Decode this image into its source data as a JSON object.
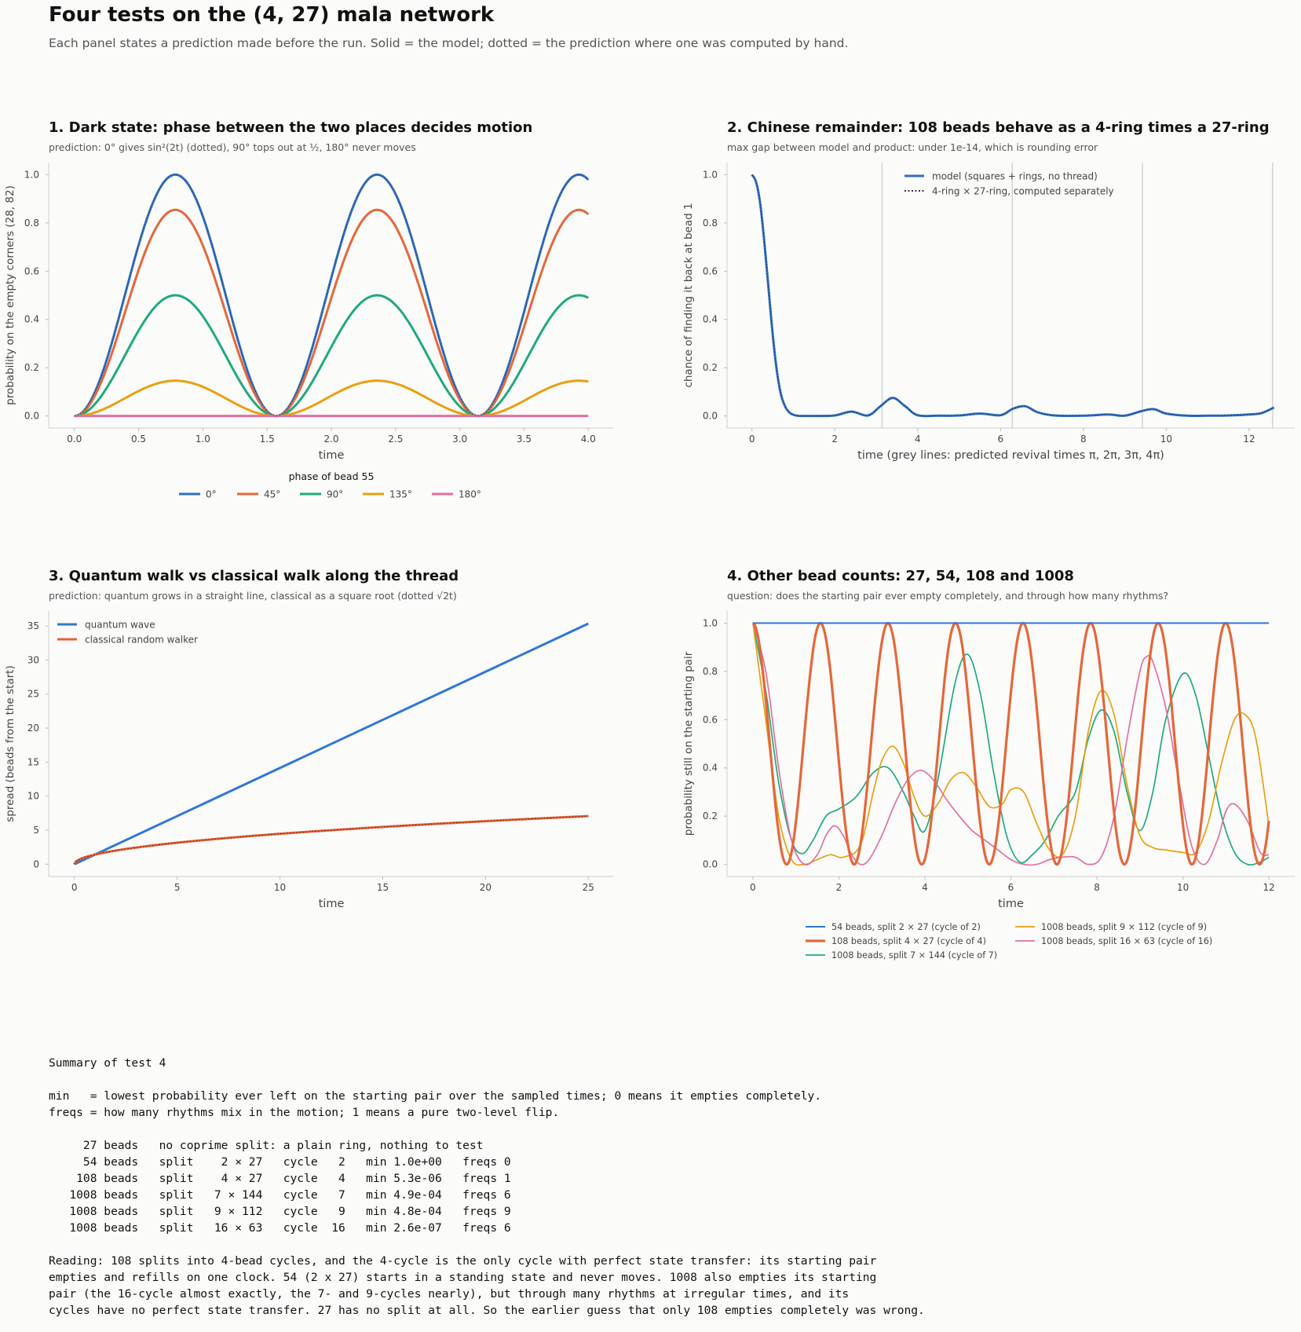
{
  "header": {
    "title": "Four tests on the (4, 27) mala network",
    "subtitle": "Each panel states a prediction made before the run. Solid = the model; dotted = the prediction where one was computed by hand."
  },
  "panels": [
    {
      "title": "1. Dark state: phase between the two places decides motion",
      "subtitle": "prediction: 0° gives sin²(2t) (dotted), 90° tops out at ½, 180° never moves"
    },
    {
      "title": "2. Chinese remainder: 108 beads behave as a 4-ring times a 27-ring",
      "subtitle": "max gap between model and product: under 1e-14, which is rounding error"
    },
    {
      "title": "3. Quantum walk vs classical walk along the thread",
      "subtitle": "prediction: quantum grows in a straight line, classical as a square root (dotted √2t)"
    },
    {
      "title": "4. Other bead counts: 27, 54, 108 and 1008",
      "subtitle": "question: does the starting pair ever empty completely, and through how many rhythms?"
    }
  ],
  "chart_data": [
    {
      "type": "line",
      "xlabel": "time",
      "ylabel": "probability on the empty corners (28, 82)",
      "xlim": [
        -0.2,
        4.2
      ],
      "ylim": [
        -0.05,
        1.05
      ],
      "xticks": [
        0.0,
        0.5,
        1.0,
        1.5,
        2.0,
        2.5,
        3.0,
        3.5,
        4.0
      ],
      "yticks": [
        0.0,
        0.2,
        0.4,
        0.6,
        0.8,
        1.0
      ],
      "legend_title": "phase of bead 55",
      "legend_position": "below",
      "x_domain": [
        0,
        4
      ],
      "model": "A · sin²(2t)",
      "series": [
        {
          "name": "0°",
          "color": "#2f6fbf",
          "amplitude": 1.0
        },
        {
          "name": "45°",
          "color": "#e3683a",
          "amplitude": 0.854
        },
        {
          "name": "90°",
          "color": "#1faa7c",
          "amplitude": 0.5
        },
        {
          "name": "135°",
          "color": "#e9a011",
          "amplitude": 0.146
        },
        {
          "name": "180°",
          "color": "#e0719f",
          "amplitude": 0.0
        }
      ],
      "prediction": {
        "style": "dotted",
        "matches_series": "0°"
      }
    },
    {
      "type": "line",
      "xlabel": "time  (grey lines: predicted revival times π, 2π, 3π, 4π)",
      "ylabel": "chance of finding it back at bead 1",
      "xlim": [
        -0.6,
        13.1
      ],
      "ylim": [
        -0.05,
        1.05
      ],
      "xticks": [
        0,
        2,
        4,
        6,
        8,
        10,
        12
      ],
      "yticks": [
        0.0,
        0.2,
        0.4,
        0.6,
        0.8,
        1.0
      ],
      "vlines": [
        3.1416,
        6.2832,
        9.4248,
        12.5664
      ],
      "legend_position": "top-center",
      "series": [
        {
          "name": "model (squares + rings, no thread)",
          "color": "#2f6fbf",
          "style": "solid",
          "x": [
            0,
            0.1,
            0.2,
            0.3,
            0.4,
            0.5,
            0.6,
            0.7,
            0.8,
            0.9,
            1.0,
            1.1,
            1.2,
            1.5,
            2.0,
            2.4,
            2.8,
            3.1,
            3.4,
            3.7,
            4.0,
            4.5,
            5.0,
            5.5,
            6.0,
            6.3,
            6.6,
            6.9,
            7.3,
            8.0,
            8.6,
            9.0,
            9.4,
            9.7,
            10.0,
            10.5,
            11.0,
            11.5,
            12.0,
            12.3,
            12.6
          ],
          "y": [
            1.0,
            0.97,
            0.88,
            0.72,
            0.53,
            0.34,
            0.19,
            0.09,
            0.04,
            0.015,
            0.005,
            0.001,
            0.0,
            0.0,
            0.002,
            0.018,
            0.002,
            0.04,
            0.075,
            0.04,
            0.003,
            0.001,
            0.002,
            0.01,
            0.003,
            0.03,
            0.04,
            0.015,
            0.002,
            0.001,
            0.006,
            0.001,
            0.02,
            0.028,
            0.01,
            0.001,
            0.001,
            0.002,
            0.006,
            0.012,
            0.035
          ]
        },
        {
          "name": "4-ring × 27-ring, computed separately",
          "color": "#333333",
          "style": "dotted",
          "same_as": "model (squares + rings, no thread)"
        }
      ]
    },
    {
      "type": "line",
      "xlabel": "time",
      "ylabel": "spread (beads from the start)",
      "xlim": [
        -1.25,
        26.25
      ],
      "ylim": [
        -1.8,
        37.2
      ],
      "xticks": [
        0,
        5,
        10,
        15,
        20,
        25
      ],
      "yticks": [
        0,
        5,
        10,
        15,
        20,
        25,
        30,
        35
      ],
      "legend_position": "top-left",
      "x_domain": [
        0,
        25
      ],
      "series": [
        {
          "name": "quantum wave",
          "color": "#2f78d4",
          "style": "solid",
          "model": "1.414 · t"
        },
        {
          "name": "classical random walker",
          "color": "#e85f35",
          "style": "solid",
          "model": "√(2t)"
        }
      ],
      "prediction": {
        "style": "dotted",
        "formula": "√2t"
      }
    },
    {
      "type": "line",
      "xlabel": "time",
      "ylabel": "probability still on the starting pair",
      "xlim": [
        -0.6,
        12.6
      ],
      "ylim": [
        -0.05,
        1.05
      ],
      "xticks": [
        0,
        2,
        4,
        6,
        8,
        10,
        12
      ],
      "yticks": [
        0.0,
        0.2,
        0.4,
        0.6,
        0.8,
        1.0
      ],
      "legend_position": "below",
      "series": [
        {
          "name": "54 beads, split 2 × 27 (cycle of 2)",
          "color": "#2f78d4",
          "width": 2,
          "x": [
            0,
            12
          ],
          "y": [
            1.0,
            1.0
          ]
        },
        {
          "name": "108 beads, split 4 × 27 (cycle of 4)",
          "color": "#e3683a",
          "width": 3.2,
          "model": "cos²(2t)"
        },
        {
          "name": "1008 beads, split 7 × 144 (cycle of 7)",
          "color": "#1faa7c",
          "width": 1.7,
          "x": [
            0,
            0.3,
            0.6,
            0.9,
            1.15,
            1.4,
            1.7,
            2.0,
            2.4,
            2.8,
            3.15,
            3.5,
            3.75,
            4.0,
            4.3,
            4.7,
            5.0,
            5.3,
            5.6,
            5.9,
            6.2,
            6.5,
            6.8,
            7.1,
            7.5,
            7.8,
            8.1,
            8.4,
            8.7,
            9.0,
            9.3,
            9.6,
            10.0,
            10.3,
            10.6,
            10.9,
            11.2,
            11.5,
            11.8,
            12.0
          ],
          "y": [
            1.0,
            0.72,
            0.34,
            0.1,
            0.045,
            0.1,
            0.2,
            0.23,
            0.28,
            0.38,
            0.4,
            0.3,
            0.2,
            0.14,
            0.35,
            0.75,
            0.87,
            0.7,
            0.38,
            0.12,
            0.01,
            0.04,
            0.1,
            0.2,
            0.3,
            0.52,
            0.64,
            0.55,
            0.3,
            0.14,
            0.3,
            0.6,
            0.79,
            0.7,
            0.45,
            0.2,
            0.05,
            0.0,
            0.01,
            0.03
          ]
        },
        {
          "name": "1008 beads, split 9 × 112 (cycle of 9)",
          "color": "#e9a011",
          "width": 1.7,
          "x": [
            0,
            0.3,
            0.6,
            0.9,
            1.2,
            1.5,
            1.8,
            2.1,
            2.5,
            2.8,
            3.0,
            3.25,
            3.5,
            3.75,
            4.0,
            4.3,
            4.6,
            4.9,
            5.2,
            5.5,
            5.8,
            6.0,
            6.3,
            6.6,
            6.9,
            7.2,
            7.5,
            7.8,
            8.1,
            8.4,
            8.7,
            9.0,
            9.3,
            9.6,
            10.0,
            10.3,
            10.6,
            10.9,
            11.2,
            11.45,
            11.7,
            12.0
          ],
          "y": [
            1.0,
            0.6,
            0.2,
            0.02,
            0.0,
            0.02,
            0.04,
            0.03,
            0.08,
            0.3,
            0.43,
            0.49,
            0.42,
            0.28,
            0.2,
            0.25,
            0.35,
            0.38,
            0.32,
            0.24,
            0.25,
            0.31,
            0.3,
            0.17,
            0.06,
            0.04,
            0.2,
            0.55,
            0.72,
            0.62,
            0.33,
            0.12,
            0.07,
            0.06,
            0.05,
            0.05,
            0.18,
            0.42,
            0.6,
            0.62,
            0.52,
            0.16
          ]
        },
        {
          "name": "1008 beads, split 16 × 63 (cycle of 16)",
          "color": "#e0719f",
          "width": 1.7,
          "x": [
            0,
            0.3,
            0.6,
            0.9,
            1.2,
            1.5,
            1.7,
            1.9,
            2.1,
            2.3,
            2.5,
            2.7,
            3.0,
            3.3,
            3.6,
            3.9,
            4.2,
            4.5,
            4.8,
            5.1,
            5.4,
            5.7,
            6.0,
            6.3,
            6.6,
            6.9,
            7.2,
            7.5,
            7.8,
            8.1,
            8.4,
            8.7,
            9.0,
            9.15,
            9.3,
            9.6,
            9.9,
            10.2,
            10.5,
            10.8,
            11.0,
            11.2,
            11.5,
            11.8,
            12.0
          ],
          "y": [
            1.0,
            0.8,
            0.4,
            0.1,
            0.0,
            0.04,
            0.12,
            0.16,
            0.12,
            0.04,
            0.0,
            0.02,
            0.12,
            0.25,
            0.35,
            0.39,
            0.35,
            0.27,
            0.2,
            0.14,
            0.1,
            0.06,
            0.02,
            0.0,
            0.0,
            0.02,
            0.03,
            0.03,
            0.0,
            0.03,
            0.2,
            0.52,
            0.8,
            0.86,
            0.84,
            0.65,
            0.35,
            0.08,
            0.0,
            0.1,
            0.22,
            0.25,
            0.18,
            0.05,
            0.04
          ]
        }
      ]
    }
  ],
  "summary": {
    "text": "Summary of test 4\n\nmin   = lowest probability ever left on the starting pair over the sampled times; 0 means it empties completely.\nfreqs = how many rhythms mix in the motion; 1 means a pure two-level flip.\n\n     27 beads   no coprime split: a plain ring, nothing to test\n     54 beads   split    2 × 27   cycle   2   min 1.0e+00   freqs 0\n    108 beads   split    4 × 27   cycle   4   min 5.3e-06   freqs 1\n   1008 beads   split   7 × 144   cycle   7   min 4.9e-04   freqs 6\n   1008 beads   split   9 × 112   cycle   9   min 4.8e-04   freqs 9\n   1008 beads   split   16 × 63   cycle  16   min 2.6e-07   freqs 6\n\nReading: 108 splits into 4-bead cycles, and the 4-cycle is the only cycle with perfect state transfer: its starting pair\nempties and refills on one clock. 54 (2 x 27) starts in a standing state and never moves. 1008 also empties its starting\npair (the 16-cycle almost exactly, the 7- and 9-cycles nearly), but through many rhythms at irregular times, and its\ncycles have no perfect state transfer. 27 has no split at all. So the earlier guess that only 108 empties completely was wrong."
  }
}
